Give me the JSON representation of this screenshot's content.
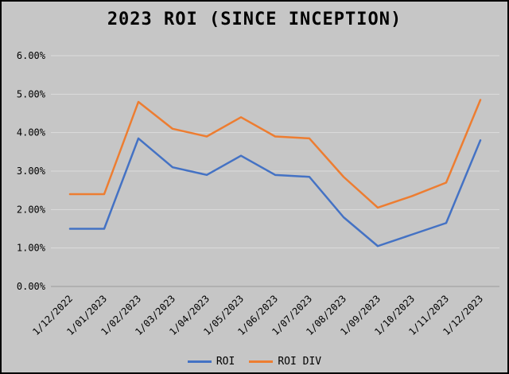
{
  "window": {
    "title": "2023 ROI (SINCE INCEPTION)"
  },
  "chart_data": {
    "type": "line",
    "title": "2023 ROI (SINCE INCEPTION)",
    "x": [
      "1/12/2022",
      "1/01/2023",
      "1/02/2023",
      "1/03/2023",
      "1/04/2023",
      "1/05/2023",
      "1/06/2023",
      "1/07/2023",
      "1/08/2023",
      "1/09/2023",
      "1/10/2023",
      "1/11/2023",
      "1/12/2023"
    ],
    "series": [
      {
        "name": "ROI",
        "color": "#4472c4",
        "values": [
          1.5,
          1.5,
          3.85,
          3.1,
          2.9,
          3.4,
          2.9,
          2.85,
          1.8,
          1.05,
          1.35,
          1.65,
          3.8
        ]
      },
      {
        "name": "ROI DIV",
        "color": "#ed7d31",
        "values": [
          2.4,
          2.4,
          4.8,
          4.1,
          3.9,
          4.4,
          3.9,
          3.85,
          2.85,
          2.05,
          2.35,
          2.7,
          4.85
        ]
      }
    ],
    "ylim": [
      0,
      6
    ],
    "ytick_step": 1,
    "ytick_labels": [
      "0.00%",
      "1.00%",
      "2.00%",
      "3.00%",
      "4.00%",
      "5.00%",
      "6.00%"
    ],
    "grid": true,
    "legend_position": "bottom",
    "xlabel": "",
    "ylabel": ""
  },
  "colors": {
    "background": "#c6c6c6",
    "gridline": "#dcdcdc",
    "axis": "#9a9a9a",
    "text": "#000000"
  }
}
